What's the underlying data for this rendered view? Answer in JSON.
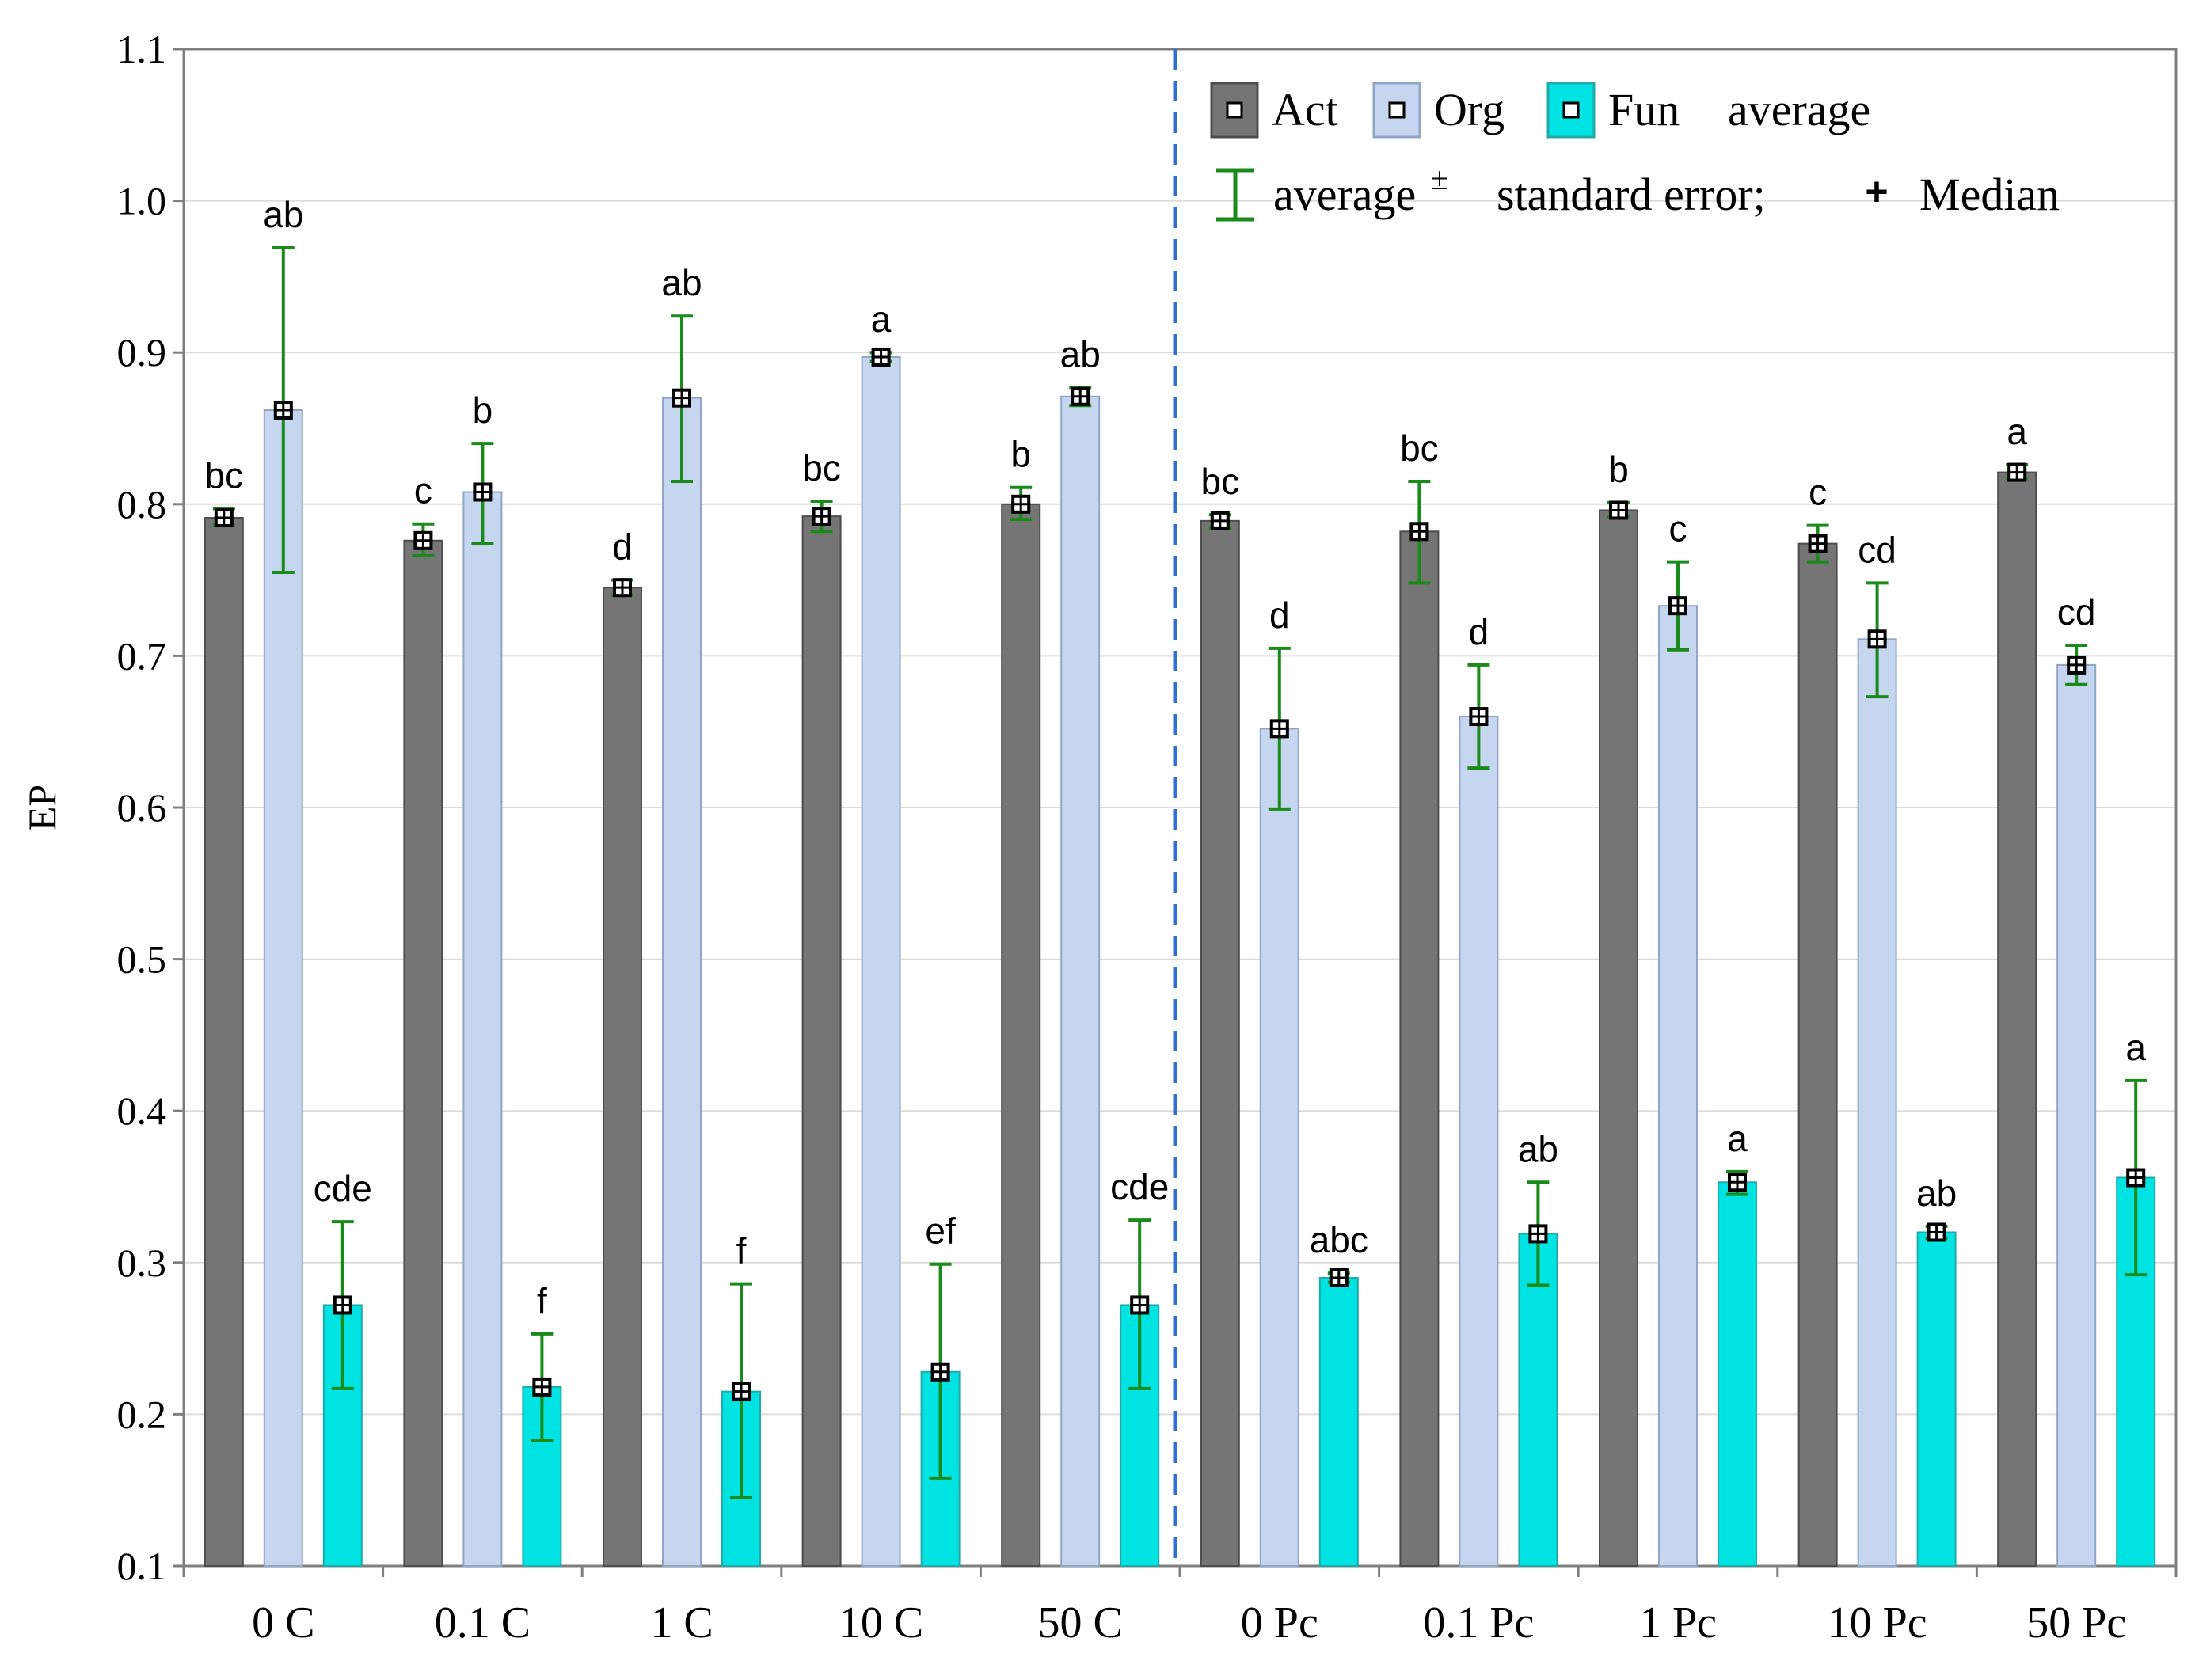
{
  "chart_data": {
    "type": "bar",
    "ylabel": "EP",
    "ylim": [
      0.1,
      1.1
    ],
    "yticks": [
      "0.1",
      "0.2",
      "0.3",
      "0.4",
      "0.5",
      "0.6",
      "0.7",
      "0.8",
      "0.9",
      "1.0",
      "1.1"
    ],
    "grid": true,
    "legend_position": "top-right",
    "categories": [
      "0 C",
      "0.1 C",
      "1 C",
      "10 C",
      "50 C",
      "0 Pc",
      "0.1 Pc",
      "1 Pc",
      "10 Pc",
      "50 Pc"
    ],
    "series": [
      {
        "name": "Act",
        "color": "#757575",
        "values": [
          0.791,
          0.776,
          0.745,
          0.792,
          0.8,
          0.789,
          0.782,
          0.796,
          0.774,
          0.821
        ],
        "error_low": [
          0.786,
          0.766,
          0.74,
          0.782,
          0.79,
          0.784,
          0.748,
          0.792,
          0.762,
          0.816
        ],
        "error_high": [
          0.797,
          0.787,
          0.75,
          0.802,
          0.811,
          0.793,
          0.815,
          0.801,
          0.786,
          0.826
        ],
        "letters": [
          "bc",
          "c",
          "d",
          "bc",
          "b",
          "bc",
          "bc",
          "b",
          "c",
          "a"
        ]
      },
      {
        "name": "Org",
        "color": "#c6d6ef",
        "values": [
          0.862,
          0.808,
          0.87,
          0.897,
          0.871,
          0.652,
          0.66,
          0.733,
          0.711,
          0.694
        ],
        "error_low": [
          0.755,
          0.774,
          0.815,
          0.894,
          0.865,
          0.599,
          0.626,
          0.704,
          0.673,
          0.681
        ],
        "error_high": [
          0.969,
          0.84,
          0.924,
          0.9,
          0.877,
          0.705,
          0.694,
          0.762,
          0.748,
          0.707
        ],
        "letters": [
          "ab",
          "b",
          "ab",
          "a",
          "ab",
          "d",
          "d",
          "c",
          "cd",
          "cd"
        ]
      },
      {
        "name": "Fun",
        "color": "#00e3e3",
        "values": [
          0.272,
          0.218,
          0.215,
          0.228,
          0.272,
          0.29,
          0.319,
          0.353,
          0.32,
          0.356
        ],
        "error_low": [
          0.217,
          0.183,
          0.145,
          0.158,
          0.217,
          0.287,
          0.285,
          0.345,
          0.316,
          0.292
        ],
        "error_high": [
          0.327,
          0.253,
          0.286,
          0.299,
          0.328,
          0.293,
          0.353,
          0.36,
          0.324,
          0.42
        ],
        "letters": [
          "cde",
          "f",
          "f",
          "ef",
          "cde",
          "abc",
          "ab",
          "a",
          "ab",
          "a"
        ]
      }
    ],
    "legend": {
      "row1_suffix": "average",
      "error_text_left": "average",
      "error_symbol": "±",
      "error_text_right": "standard error;",
      "median_symbol": "+",
      "median_label": "Median"
    },
    "divider": {
      "after_category": "50 C",
      "color": "#2f6fd6",
      "style": "dashed"
    },
    "colors": {
      "error_bar": "#1a8a1a",
      "grid": "#dcdcdc",
      "axis": "#7f7f7f"
    }
  }
}
